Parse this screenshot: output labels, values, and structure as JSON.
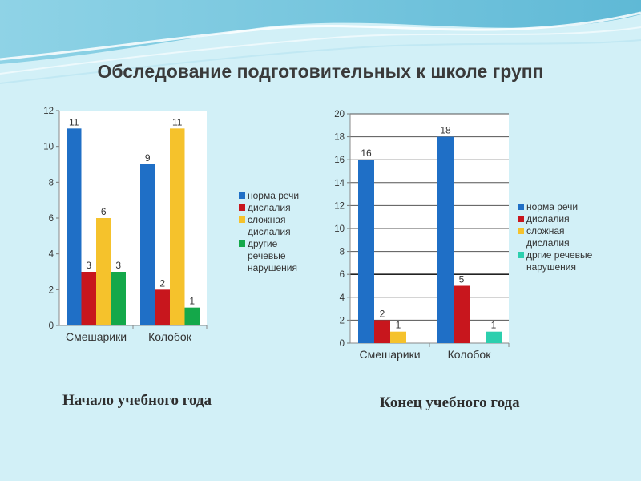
{
  "slide": {
    "title": "Обследование подготовительных к школе групп",
    "captions": [
      "Начало учебного года",
      "Конец учебного года"
    ]
  },
  "colors": {
    "background": "#d2f0f7",
    "title": "#3a3a3a",
    "wave_dark": "#7fc9e0",
    "wave_light": "#ffffff"
  },
  "chart_data": [
    {
      "type": "bar",
      "title": "",
      "xlabel": "",
      "ylabel": "",
      "categories": [
        "Смешарики",
        "Колобок"
      ],
      "ylim": [
        0,
        12
      ],
      "yticks": [
        0,
        2,
        4,
        6,
        8,
        10,
        12
      ],
      "grid": false,
      "legend_position": "right",
      "series": [
        {
          "name": "норма речи",
          "color": "#1f6fc6",
          "values": [
            11,
            9
          ]
        },
        {
          "name": "дислалия",
          "color": "#c8161d",
          "values": [
            3,
            2
          ]
        },
        {
          "name": "сложная дислалия",
          "color": "#f5c22c",
          "values": [
            6,
            11
          ]
        },
        {
          "name": "другие речевые нарушения",
          "color": "#14a84a",
          "values": [
            3,
            1
          ]
        }
      ],
      "legend_lines": [
        [
          "норма речи"
        ],
        [
          "дислалия"
        ],
        [
          "сложная",
          "дислалия"
        ],
        [
          "другие",
          "речевые",
          "нарушения"
        ]
      ]
    },
    {
      "type": "bar",
      "title": "",
      "xlabel": "",
      "ylabel": "",
      "categories": [
        "Смешарики",
        "Колобок"
      ],
      "ylim": [
        0,
        20
      ],
      "yticks": [
        0,
        2,
        4,
        6,
        8,
        10,
        12,
        14,
        16,
        18,
        20
      ],
      "grid": true,
      "legend_position": "right",
      "series": [
        {
          "name": "норма речи",
          "color": "#1f6fc6",
          "values": [
            16,
            18
          ]
        },
        {
          "name": "дислалия",
          "color": "#c8161d",
          "values": [
            2,
            5
          ]
        },
        {
          "name": "сложная дислалия",
          "color": "#f5c22c",
          "values": [
            1,
            null
          ]
        },
        {
          "name": "дргие речевые нарушения",
          "color": "#2ccfae",
          "values": [
            null,
            1
          ]
        }
      ],
      "legend_lines": [
        [
          "норма речи"
        ],
        [
          "дислалия"
        ],
        [
          "сложная",
          "дислалия"
        ],
        [
          "дргие речевые",
          "нарушения"
        ]
      ]
    }
  ]
}
